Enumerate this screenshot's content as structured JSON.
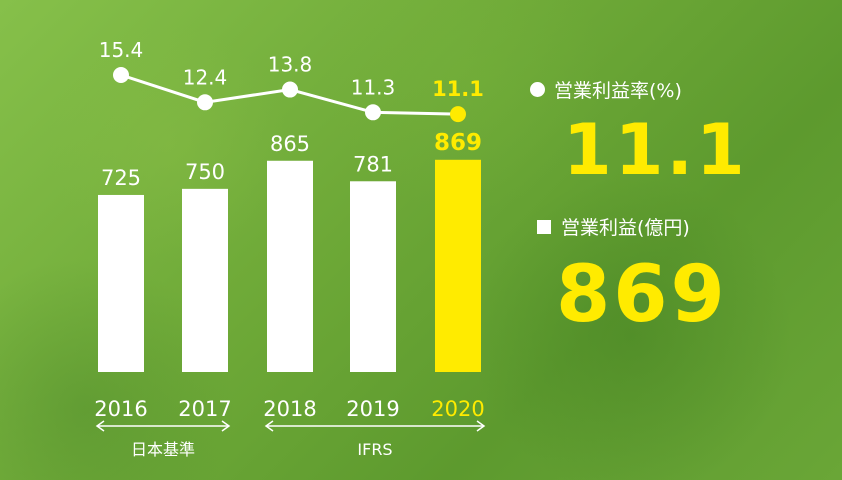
{
  "chart_data": {
    "type": "bar",
    "categories": [
      "2016",
      "2017",
      "2018",
      "2019",
      "2020"
    ],
    "series": [
      {
        "name": "営業利益(億円)",
        "type": "bar",
        "values": [
          725,
          750,
          865,
          781,
          869
        ]
      },
      {
        "name": "営業利益率(%)",
        "type": "line",
        "values": [
          15.4,
          12.4,
          13.8,
          11.3,
          11.1
        ]
      }
    ],
    "bar_labels": [
      "725",
      "750",
      "865",
      "781",
      "869"
    ],
    "line_labels": [
      "15.4",
      "12.4",
      "13.8",
      "11.3",
      "11.1"
    ],
    "highlight_index": 4,
    "colors": {
      "bar": "#ffffff",
      "highlight": "#ffeb00",
      "line": "#ffffff"
    },
    "groups": [
      {
        "label": "日本基準",
        "categories": [
          "2016",
          "2017"
        ]
      },
      {
        "label": "IFRS",
        "categories": [
          "2018",
          "2019",
          "2020"
        ]
      }
    ]
  },
  "legend": {
    "rate_label": "営業利益率(%)",
    "rate_value": "11.1",
    "profit_label": "営業利益(億円)",
    "profit_value": "869"
  }
}
